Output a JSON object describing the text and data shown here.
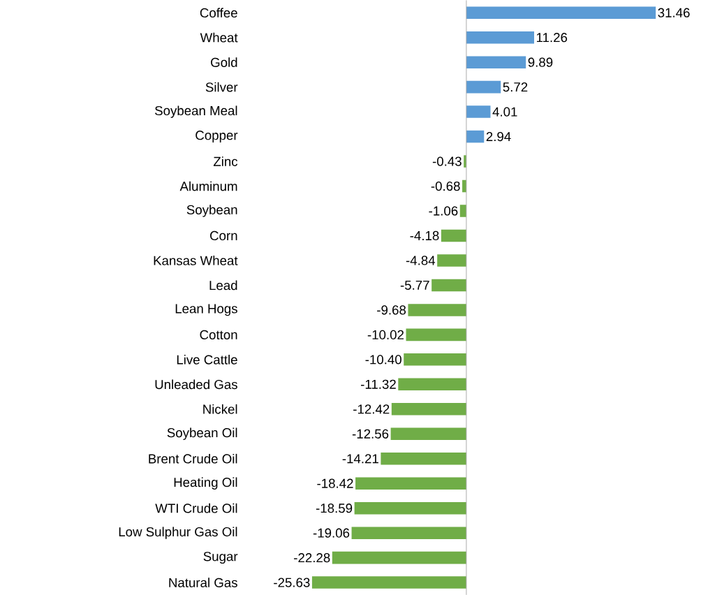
{
  "chart_data": {
    "type": "bar",
    "orientation": "horizontal",
    "categories": [
      "Coffee",
      "Wheat",
      "Gold",
      "Silver",
      "Soybean Meal",
      "Copper",
      "Zinc",
      "Aluminum",
      "Soybean",
      "Corn",
      "Kansas Wheat",
      "Lead",
      "Lean Hogs",
      "Cotton",
      "Live Cattle",
      "Unleaded Gas",
      "Nickel",
      "Soybean Oil",
      "Brent Crude Oil",
      "Heating Oil",
      "WTI Crude Oil",
      "Low Sulphur Gas Oil",
      "Sugar",
      "Natural Gas"
    ],
    "values": [
      31.46,
      11.26,
      9.89,
      5.72,
      4.01,
      2.94,
      -0.43,
      -0.68,
      -1.06,
      -4.18,
      -4.84,
      -5.77,
      -9.68,
      -10.02,
      -10.4,
      -11.32,
      -12.42,
      -12.56,
      -14.21,
      -18.42,
      -18.59,
      -19.06,
      -22.28,
      -25.63
    ],
    "value_labels": [
      "31.46",
      "11.26",
      "9.89",
      "5.72",
      "4.01",
      "2.94",
      "-0.43",
      "-0.68",
      "-1.06",
      "-4.18",
      "-4.84",
      "-5.77",
      "-9.68",
      "-10.02",
      "-10.40",
      "-11.32",
      "-12.42",
      "-12.56",
      "-14.21",
      "-18.42",
      "-18.59",
      "-19.06",
      "-22.28",
      "-25.63"
    ],
    "colors": [
      "#5b9bd5",
      "#5b9bd5",
      "#5b9bd5",
      "#5b9bd5",
      "#5b9bd5",
      "#5b9bd5",
      "#70ad47",
      "#70ad47",
      "#70ad47",
      "#70ad47",
      "#70ad47",
      "#70ad47",
      "#70ad47",
      "#70ad47",
      "#70ad47",
      "#70ad47",
      "#70ad47",
      "#70ad47",
      "#70ad47",
      "#70ad47",
      "#70ad47",
      "#70ad47",
      "#70ad47",
      "#70ad47"
    ]
  }
}
